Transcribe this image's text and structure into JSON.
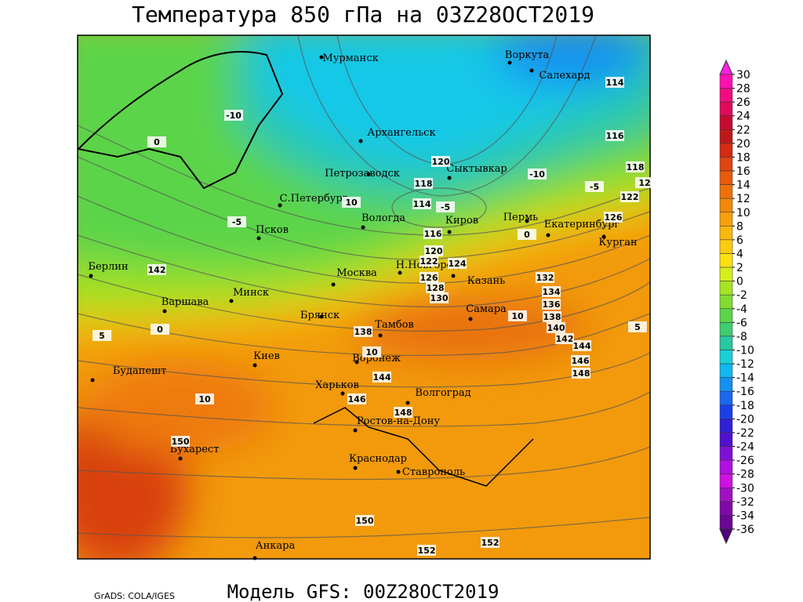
{
  "title": "Температура 850 гПа на 03Z28OCT2019",
  "footer": "Модель GFS: 00Z28OCT2019",
  "credit": "GrADS: COLA/IGES",
  "colorbar": {
    "ticks": [
      30,
      28,
      26,
      24,
      22,
      20,
      18,
      16,
      14,
      12,
      10,
      8,
      6,
      4,
      2,
      0,
      -2,
      -4,
      -6,
      -8,
      -10,
      -12,
      -14,
      -16,
      -18,
      -20,
      -22,
      -24,
      -26,
      -28,
      -30,
      -32,
      -34,
      -36
    ],
    "colors": [
      "#ff20e0",
      "#ff10b0",
      "#f00c80",
      "#e00a5a",
      "#c80a32",
      "#c01818",
      "#d42a12",
      "#e04410",
      "#e85a0c",
      "#ee700a",
      "#f28808",
      "#f6a00a",
      "#fab80c",
      "#fccc0e",
      "#fde010",
      "#d6ee1a",
      "#a6e420",
      "#80dc30",
      "#5cd448",
      "#40cc70",
      "#28c8a0",
      "#18d0d8",
      "#10b8f0",
      "#1490f0",
      "#1a68f0",
      "#1c40e8",
      "#3020d8",
      "#5010d0",
      "#8010d8",
      "#b010e0",
      "#d010e0",
      "#a010c0",
      "#8008a8",
      "#6a0894",
      "#500080"
    ]
  },
  "cities": [
    "Мурманск",
    "Воркута",
    "Салехард",
    "Архангельск",
    "Петрозаводск",
    "Сыктывкар",
    "С.Петербург",
    "Вологда",
    "Киров",
    "Пермь",
    "Екатеринбург",
    "Курган",
    "Псков",
    "Берлин",
    "Н.Новгород",
    "Москва",
    "Казань",
    "Варшава",
    "Минск",
    "Брянск",
    "Самара",
    "Тамбов",
    "Киев",
    "Воронеж",
    "Будапешт",
    "Харьков",
    "Волгоград",
    "Ростов-на-Дону",
    "Бухарест",
    "Краснодар",
    "Ставрополь",
    "Анкара"
  ],
  "contour_labels": [
    114,
    116,
    118,
    12,
    122,
    126,
    120,
    118,
    114,
    116,
    120,
    122,
    124,
    126,
    128,
    130,
    132,
    134,
    136,
    138,
    140,
    142,
    144,
    146,
    148,
    138,
    144,
    146,
    148,
    142,
    150,
    150,
    152,
    152,
    -10,
    -10,
    -5,
    -5,
    0,
    0,
    5,
    5,
    0,
    10,
    10,
    10,
    -5,
    10
  ]
}
